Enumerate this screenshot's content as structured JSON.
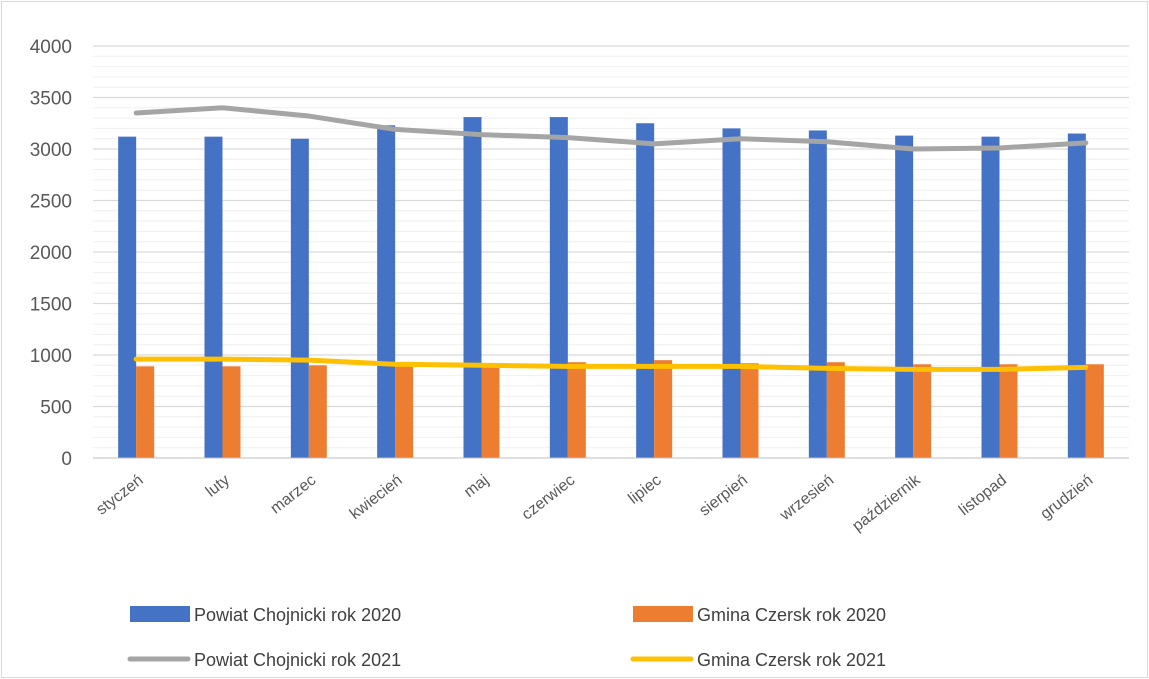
{
  "chart_data": {
    "type": "bar",
    "categories": [
      "styczeń",
      "luty",
      "marzec",
      "kwiecień",
      "maj",
      "czerwiec",
      "lipiec",
      "sierpień",
      "wrzesień",
      "październik",
      "listopad",
      "grudzień"
    ],
    "ylim": [
      0,
      4000
    ],
    "yticks": [
      0,
      500,
      1000,
      1500,
      2000,
      2500,
      3000,
      3500,
      4000
    ],
    "grid": true,
    "legend_position": "bottom",
    "series": [
      {
        "name": "Powiat Chojnicki rok 2020",
        "kind": "bar",
        "color": "#4472C4",
        "values": [
          3120,
          3120,
          3100,
          3230,
          3310,
          3310,
          3250,
          3200,
          3180,
          3130,
          3120,
          3150
        ]
      },
      {
        "name": "Gmina Czersk rok 2020",
        "kind": "bar",
        "color": "#ED7D31",
        "values": [
          890,
          890,
          900,
          910,
          920,
          930,
          950,
          920,
          930,
          910,
          910,
          910
        ]
      },
      {
        "name": "Powiat Chojnicki rok 2021",
        "kind": "line",
        "color": "#A5A5A5",
        "values": [
          3350,
          3400,
          3320,
          3190,
          3140,
          3110,
          3050,
          3100,
          3070,
          3000,
          3010,
          3060
        ]
      },
      {
        "name": "Gmina Czersk rok 2021",
        "kind": "line",
        "color": "#FFC000",
        "values": [
          960,
          960,
          950,
          910,
          900,
          890,
          890,
          890,
          870,
          860,
          860,
          880
        ]
      }
    ]
  }
}
